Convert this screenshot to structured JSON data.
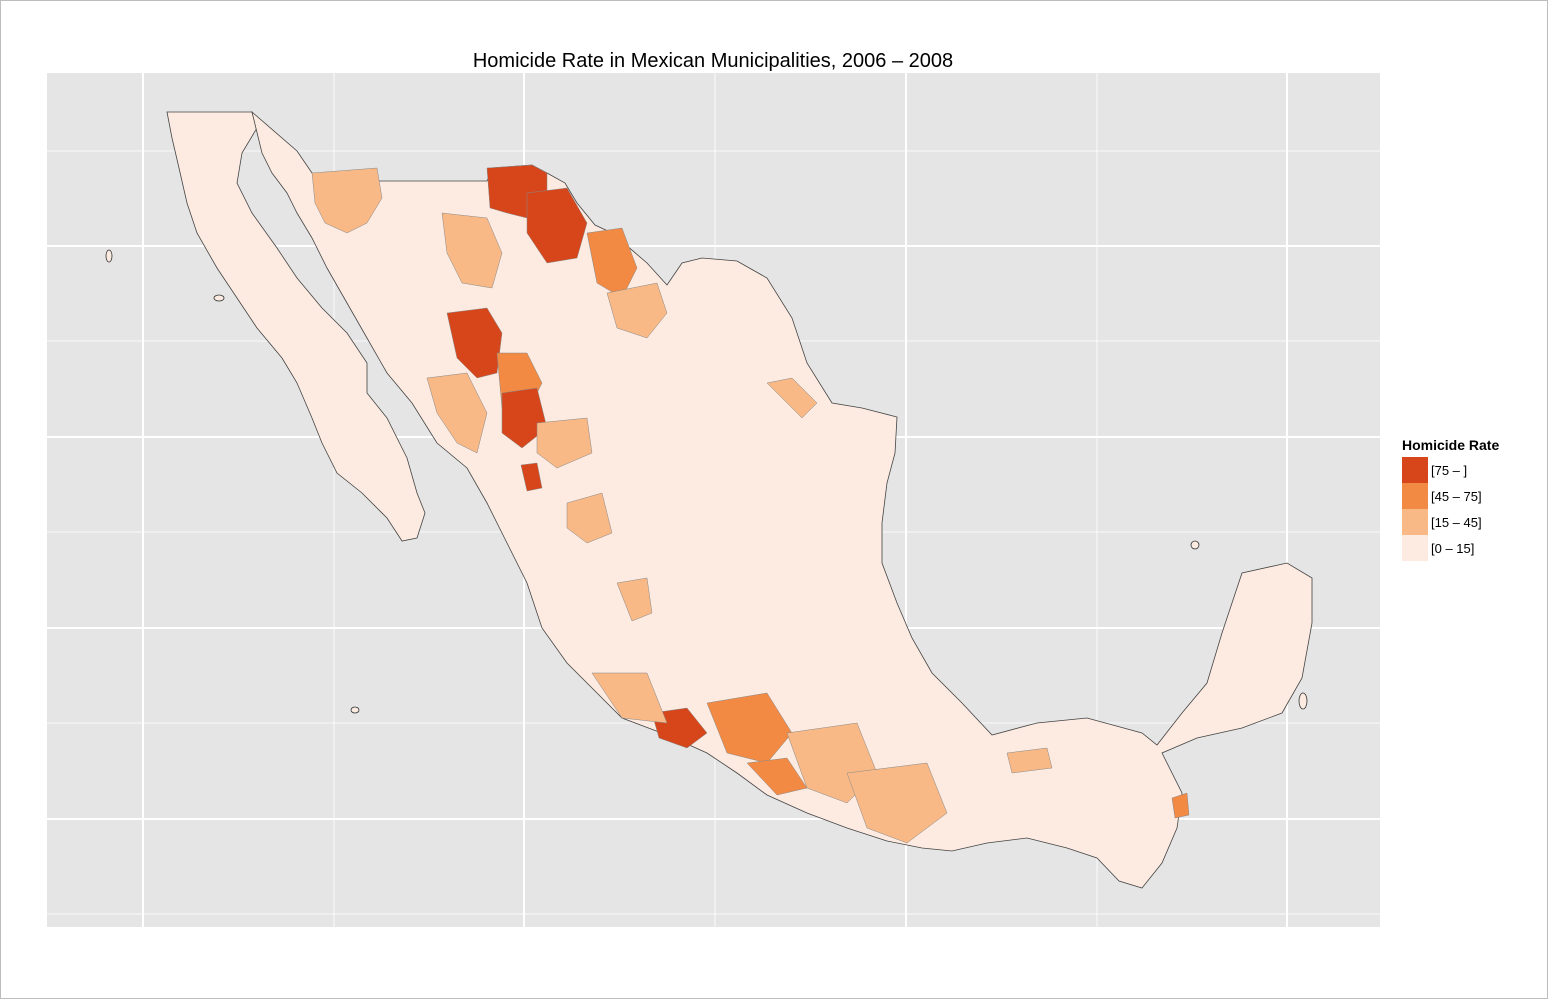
{
  "title": "Homicide Rate in Mexican Municipalities, 2006 – 2008",
  "legend": {
    "title": "Homicide Rate",
    "items": [
      {
        "label": "[75 – ]",
        "color": "#d7461a"
      },
      {
        "label": "[45 – 75]",
        "color": "#f38a44"
      },
      {
        "label": "[15 – 45]",
        "color": "#f8b986"
      },
      {
        "label": "[0 – 15]",
        "color": "#fdebe1"
      }
    ]
  },
  "colors": {
    "panel_background": "#e5e5e5",
    "gridline": "#ffffff",
    "border": "#555555"
  }
}
